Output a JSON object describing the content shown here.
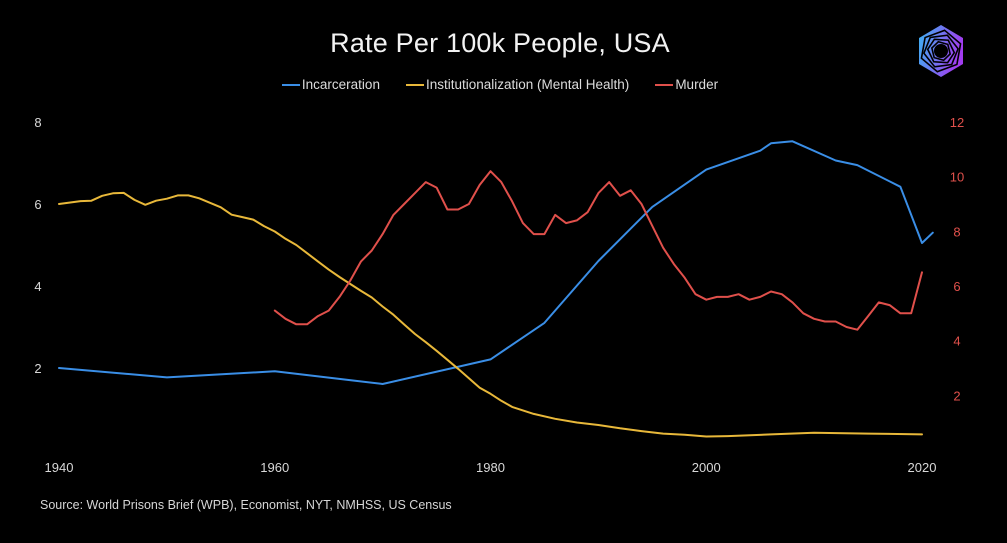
{
  "logo": "hexagon-spiral-logo",
  "source_text": "Source: World Prisons Brief (WPB), Economist, NYT, NMHSS, US Census",
  "chart_data": {
    "type": "line",
    "title": "Rate Per 100k People, USA",
    "xlabel": "",
    "ylabel": "",
    "ylabel_right": "",
    "xlim": [
      1940,
      2021
    ],
    "ylim": [
      0,
      8
    ],
    "ylim_right": [
      0,
      12
    ],
    "x_ticks": [
      1940,
      1960,
      1980,
      2000,
      2020
    ],
    "y_ticks": [
      2,
      4,
      6,
      8
    ],
    "y_ticks_right": [
      2,
      4,
      6,
      8,
      10,
      12
    ],
    "grid": false,
    "legend": "top-center",
    "series": [
      {
        "name": "Incarceration",
        "color": "#3a8ee6",
        "axis": "left",
        "x": [
          1940,
          1950,
          1960,
          1970,
          1980,
          1985,
          1990,
          1995,
          2000,
          2005,
          2006,
          2008,
          2012,
          2014,
          2018,
          2020,
          2021
        ],
        "y": [
          2.0,
          1.77,
          1.92,
          1.61,
          2.21,
          3.1,
          4.61,
          5.93,
          6.84,
          7.3,
          7.48,
          7.53,
          7.06,
          6.95,
          6.42,
          5.05,
          5.3
        ]
      },
      {
        "name": "Institutionalization (Mental Health)",
        "color": "#e8b83a",
        "axis": "left",
        "x": [
          1940,
          1942,
          1943,
          1944,
          1945,
          1946,
          1947,
          1948,
          1949,
          1950,
          1951,
          1952,
          1953,
          1954,
          1955,
          1956,
          1957,
          1958,
          1959,
          1960,
          1961,
          1962,
          1963,
          1964,
          1965,
          1966,
          1967,
          1968,
          1969,
          1970,
          1971,
          1972,
          1973,
          1974,
          1975,
          1976,
          1977,
          1978,
          1979,
          1980,
          1981,
          1982,
          1984,
          1986,
          1988,
          1990,
          1992,
          1994,
          1996,
          1998,
          2000,
          2002,
          2006,
          2010,
          2015,
          2020
        ],
        "y": [
          6.0,
          6.07,
          6.08,
          6.2,
          6.26,
          6.27,
          6.1,
          5.98,
          6.08,
          6.13,
          6.21,
          6.21,
          6.14,
          6.03,
          5.92,
          5.74,
          5.68,
          5.62,
          5.46,
          5.33,
          5.15,
          5.0,
          4.8,
          4.6,
          4.4,
          4.22,
          4.05,
          3.88,
          3.72,
          3.5,
          3.3,
          3.06,
          2.83,
          2.63,
          2.42,
          2.2,
          1.98,
          1.75,
          1.52,
          1.37,
          1.2,
          1.05,
          0.88,
          0.76,
          0.67,
          0.61,
          0.53,
          0.46,
          0.4,
          0.37,
          0.33,
          0.34,
          0.38,
          0.42,
          0.4,
          0.38
        ]
      },
      {
        "name": "Murder",
        "color": "#e0504b",
        "axis": "right",
        "x": [
          1960,
          1961,
          1962,
          1963,
          1964,
          1965,
          1966,
          1967,
          1968,
          1969,
          1970,
          1971,
          1972,
          1973,
          1974,
          1975,
          1976,
          1977,
          1978,
          1979,
          1980,
          1981,
          1982,
          1983,
          1984,
          1985,
          1986,
          1987,
          1988,
          1989,
          1990,
          1991,
          1992,
          1993,
          1994,
          1995,
          1996,
          1997,
          1998,
          1999,
          2000,
          2001,
          2002,
          2003,
          2004,
          2005,
          2006,
          2007,
          2008,
          2009,
          2010,
          2011,
          2012,
          2013,
          2014,
          2015,
          2016,
          2017,
          2018,
          2019,
          2020
        ],
        "y": [
          5.1,
          4.8,
          4.6,
          4.6,
          4.9,
          5.1,
          5.6,
          6.2,
          6.9,
          7.3,
          7.9,
          8.6,
          9.0,
          9.4,
          9.8,
          9.6,
          8.8,
          8.8,
          9.0,
          9.7,
          10.2,
          9.8,
          9.1,
          8.3,
          7.9,
          7.9,
          8.6,
          8.3,
          8.4,
          8.7,
          9.4,
          9.8,
          9.3,
          9.5,
          9.0,
          8.2,
          7.4,
          6.8,
          6.3,
          5.7,
          5.5,
          5.6,
          5.6,
          5.7,
          5.5,
          5.6,
          5.8,
          5.7,
          5.4,
          5.0,
          4.8,
          4.7,
          4.7,
          4.5,
          4.4,
          4.9,
          5.4,
          5.3,
          5.0,
          5.0,
          6.5
        ]
      }
    ]
  }
}
